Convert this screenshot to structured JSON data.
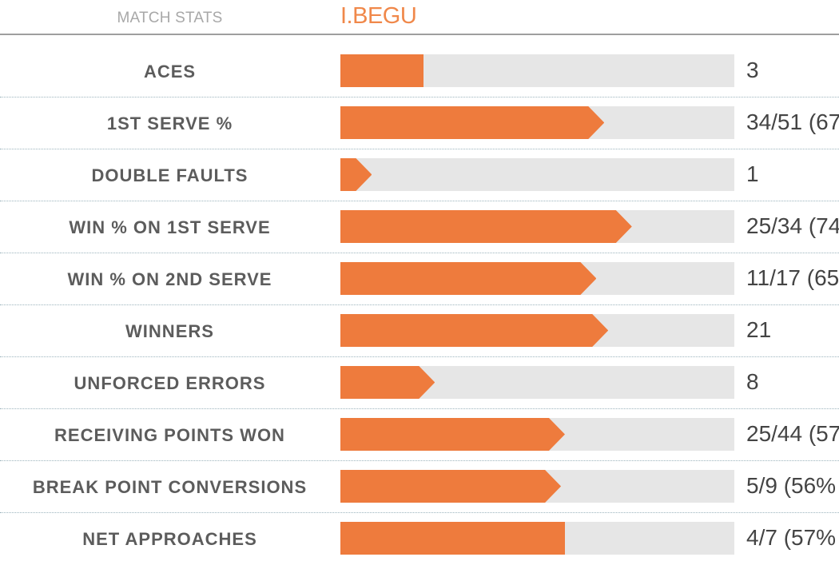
{
  "header": {
    "label": "MATCH STATS",
    "player": "I.BEGU"
  },
  "colors": {
    "bar_fill": "#ee7b3d",
    "bar_track": "#e6e6e6",
    "player_name": "#f0884a"
  },
  "stats": [
    {
      "label": "ACES",
      "value": "3",
      "fraction": 0.21,
      "arrow": false
    },
    {
      "label": "1ST SERVE %",
      "value": "34/51 (67",
      "fraction": 0.67,
      "arrow": true
    },
    {
      "label": "DOUBLE FAULTS",
      "value": "1",
      "fraction": 0.08,
      "arrow": true
    },
    {
      "label": "WIN % ON 1ST SERVE",
      "value": "25/34 (74",
      "fraction": 0.74,
      "arrow": true
    },
    {
      "label": "WIN % ON 2ND SERVE",
      "value": "11/17 (65",
      "fraction": 0.65,
      "arrow": true
    },
    {
      "label": "WINNERS",
      "value": "21",
      "fraction": 0.68,
      "arrow": true
    },
    {
      "label": "UNFORCED ERRORS",
      "value": "8",
      "fraction": 0.24,
      "arrow": true
    },
    {
      "label": "RECEIVING POINTS WON",
      "value": "25/44 (57",
      "fraction": 0.57,
      "arrow": true
    },
    {
      "label": "BREAK POINT CONVERSIONS",
      "value": "5/9 (56%",
      "fraction": 0.56,
      "arrow": true
    },
    {
      "label": "NET APPROACHES",
      "value": "4/7 (57%",
      "fraction": 0.57,
      "arrow": false
    }
  ]
}
